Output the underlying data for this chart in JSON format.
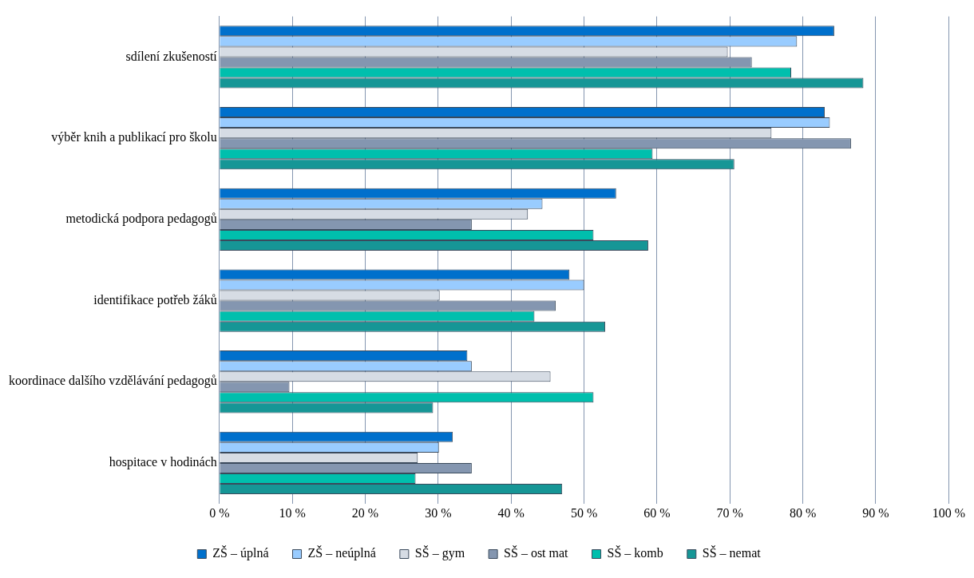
{
  "chart_data": {
    "type": "bar",
    "orientation": "horizontal",
    "categories": [
      "sdílení zkušeností",
      "výběr knih a publikací pro školu",
      "metodická podpora pedagogů",
      "identifikace potřeb žáků",
      "koordinace dalšího vzdělávání pedagogů",
      "hospitace v hodinách"
    ],
    "series": [
      {
        "name": "ZŠ – úplná",
        "color": "#0070cc",
        "values": [
          84.3,
          83,
          54.4,
          48,
          34,
          32
        ]
      },
      {
        "name": "ZŠ – neúplná",
        "color": "#99ccff",
        "values": [
          79.2,
          83.7,
          44.3,
          50,
          34.6,
          30.1
        ]
      },
      {
        "name": "SŠ – gym",
        "color": "#d6dce4",
        "values": [
          69.7,
          75.7,
          42.3,
          30.2,
          45.4,
          27.2
        ]
      },
      {
        "name": "SŠ – ost mat",
        "color": "#8496b0",
        "values": [
          73,
          86.6,
          34.6,
          46.1,
          9.6,
          34.6
        ]
      },
      {
        "name": "SŠ – komb",
        "color": "#00bfad",
        "values": [
          78.4,
          59.4,
          51.3,
          43.2,
          51.3,
          26.9
        ]
      },
      {
        "name": "SŠ – nemat",
        "color": "#169696",
        "values": [
          88.3,
          70.6,
          58.8,
          52.9,
          29.3,
          47
        ]
      }
    ],
    "xlim": [
      0,
      100
    ],
    "xticks": [
      {
        "value": 0,
        "label": "0 %"
      },
      {
        "value": 10,
        "label": "10 %"
      },
      {
        "value": 20,
        "label": "20 %"
      },
      {
        "value": 30,
        "label": "30 %"
      },
      {
        "value": 40,
        "label": "40 %"
      },
      {
        "value": 50,
        "label": "50 %"
      },
      {
        "value": 60,
        "label": "60 %"
      },
      {
        "value": 70,
        "label": "70 %"
      },
      {
        "value": 80,
        "label": "80 %"
      },
      {
        "value": 90,
        "label": "90 %"
      },
      {
        "value": 100,
        "label": "100 %"
      }
    ],
    "grid": "x",
    "legend": "bottom"
  }
}
